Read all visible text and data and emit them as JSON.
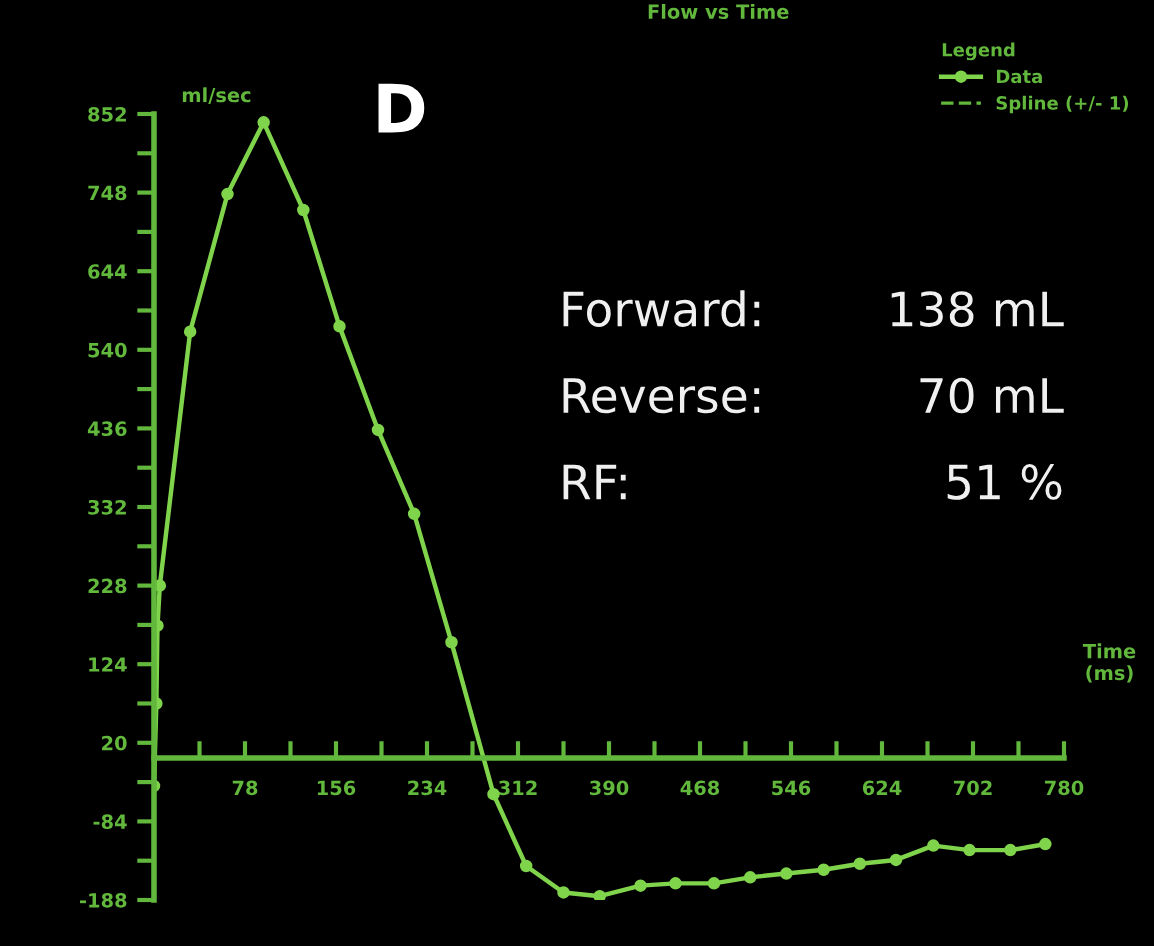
{
  "chart_data": {
    "type": "line",
    "title": "Flow vs Time",
    "xlabel": "Time\n(ms)",
    "ylabel": "ml/sec",
    "legend_title": "Legend",
    "legend": "top right",
    "marker": "circle",
    "line_style": "solid",
    "grid": false,
    "annotations": [
      "D",
      "Spline (+/- 1)",
      "Forward:",
      "138 mL",
      "Reverse:",
      "70 mL",
      "RF:",
      "51 %"
    ],
    "xlim": [
      0,
      780
    ],
    "xticks": [
      {
        "value": 0,
        "label": null
      },
      {
        "value": 39,
        "label": null
      },
      78,
      {
        "value": 117,
        "label": null
      },
      156,
      {
        "value": 195,
        "label": null
      },
      234,
      {
        "value": 273,
        "label": null
      },
      312,
      {
        "value": 351,
        "label": null
      },
      390,
      {
        "value": 429,
        "label": null
      },
      468,
      {
        "value": 507,
        "label": null
      },
      546,
      {
        "value": 585,
        "label": null
      },
      624,
      {
        "value": 663,
        "label": null
      },
      702,
      {
        "value": 741,
        "label": null
      },
      780
    ],
    "ylim": [
      -188,
      852
    ],
    "yticks": [
      -188,
      {
        "value": -136,
        "label": null
      },
      -84,
      {
        "value": -32,
        "label": null
      },
      20,
      {
        "value": 72,
        "label": null
      },
      124,
      {
        "value": 176,
        "label": null
      },
      228,
      {
        "value": 280,
        "label": null
      },
      332,
      {
        "value": 384,
        "label": null
      },
      436,
      {
        "value": 488,
        "label": null
      },
      540,
      {
        "value": 592,
        "label": null
      },
      644,
      {
        "value": 696,
        "label": null
      },
      748,
      {
        "value": 800,
        "label": null
      },
      852
    ],
    "series": [
      {
        "name": "Data",
        "color": "#7fd44c",
        "x": [
          0,
          2,
          3,
          5,
          31,
          63,
          94,
          128,
          159,
          192,
          223,
          255,
          291,
          319,
          351,
          382,
          417,
          447,
          480,
          511,
          542,
          574,
          605,
          636,
          668,
          699,
          734,
          764
        ],
        "values": [
          -37,
          72,
          175,
          228,
          564,
          746,
          841,
          725,
          571,
          434,
          323,
          153,
          -48,
          -143,
          -178,
          -183,
          -169,
          -166,
          -166,
          -158,
          -153,
          -148,
          -140,
          -135,
          -116,
          -122,
          -122,
          -114
        ]
      }
    ]
  }
}
